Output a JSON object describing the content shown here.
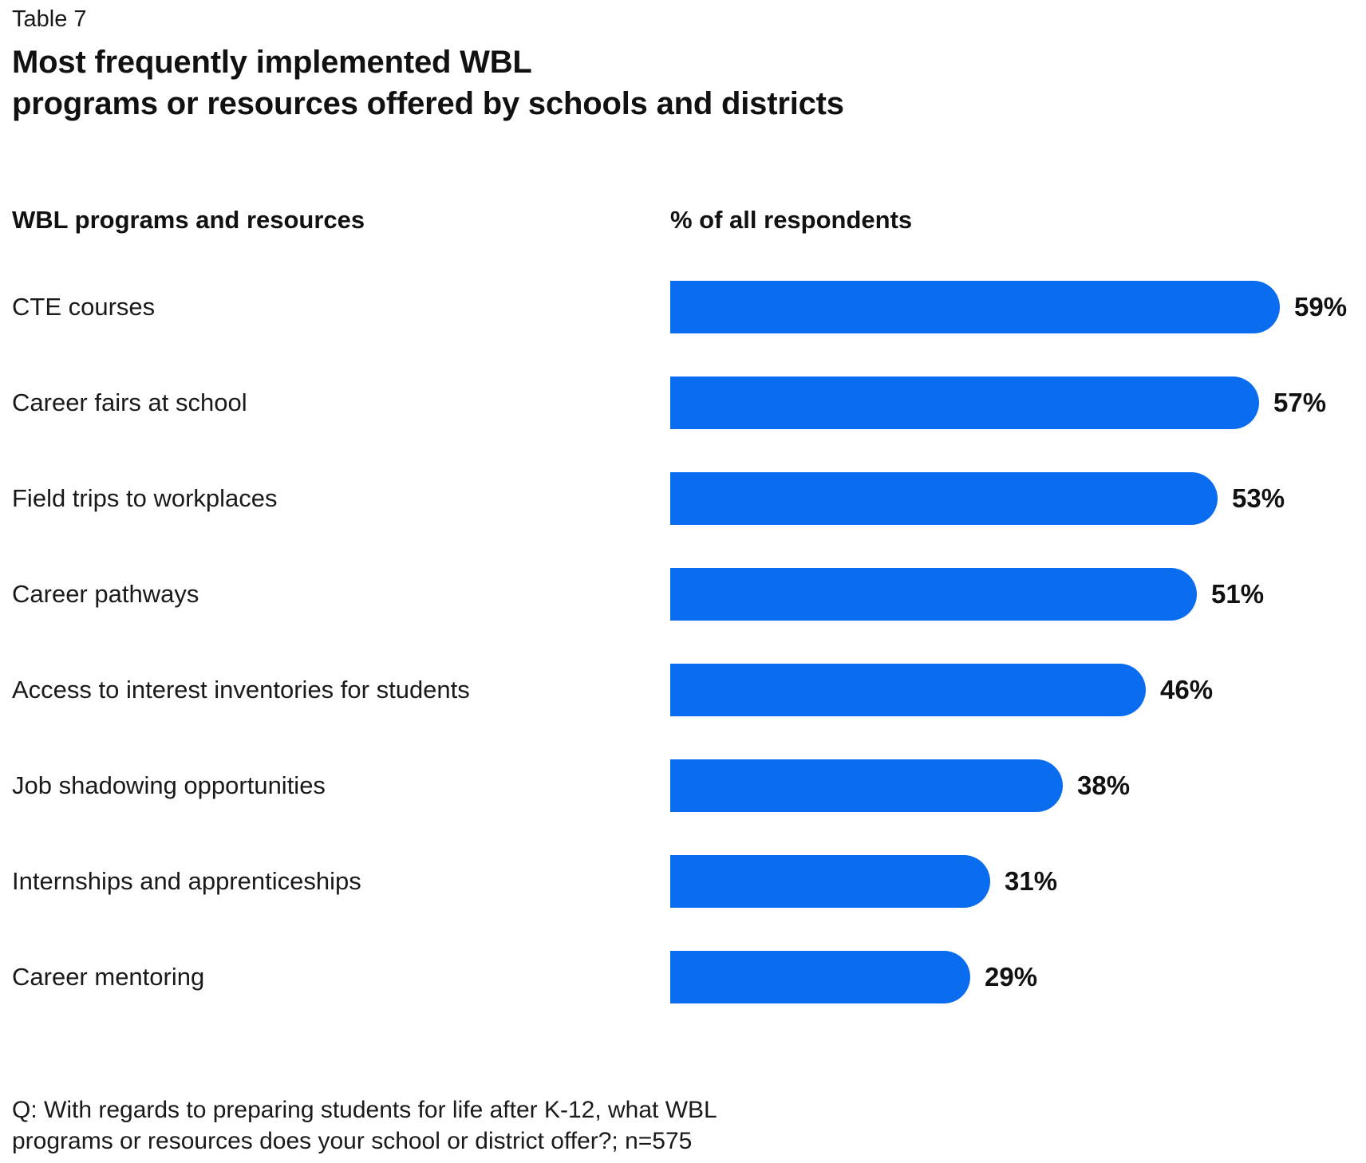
{
  "table_label": "Table 7",
  "title_line1": "Most frequently implemented WBL",
  "title_line2": "programs or resources offered by schools and districts",
  "columns": {
    "left": "WBL programs and resources",
    "right": "% of all respondents"
  },
  "footnote_line1": "Q: With regards to preparing students for life after K-12, what WBL",
  "footnote_line2": "programs or resources does your school or district offer?; n=575",
  "colors": {
    "bar": "#0A6CEE",
    "text": "#1a1a1a",
    "background": "#ffffff"
  },
  "chart_data": {
    "type": "bar",
    "orientation": "horizontal",
    "title": "Most frequently implemented WBL programs or resources offered by schools and districts",
    "xlabel": "% of all respondents",
    "ylabel": "WBL programs and resources",
    "xlim": [
      0,
      60
    ],
    "grid": false,
    "legend": false,
    "unit": "%",
    "categories": [
      "CTE courses",
      "Career fairs at school",
      "Field trips to workplaces",
      "Career pathways",
      "Access to interest inventories for students",
      "Job shadowing opportunities",
      "Internships and apprenticeships",
      "Career mentoring"
    ],
    "values": [
      59,
      57,
      53,
      51,
      46,
      38,
      31,
      29
    ],
    "value_labels": [
      "59%",
      "57%",
      "53%",
      "51%",
      "46%",
      "38%",
      "31%",
      "29%"
    ],
    "sample_note": "n=575"
  }
}
